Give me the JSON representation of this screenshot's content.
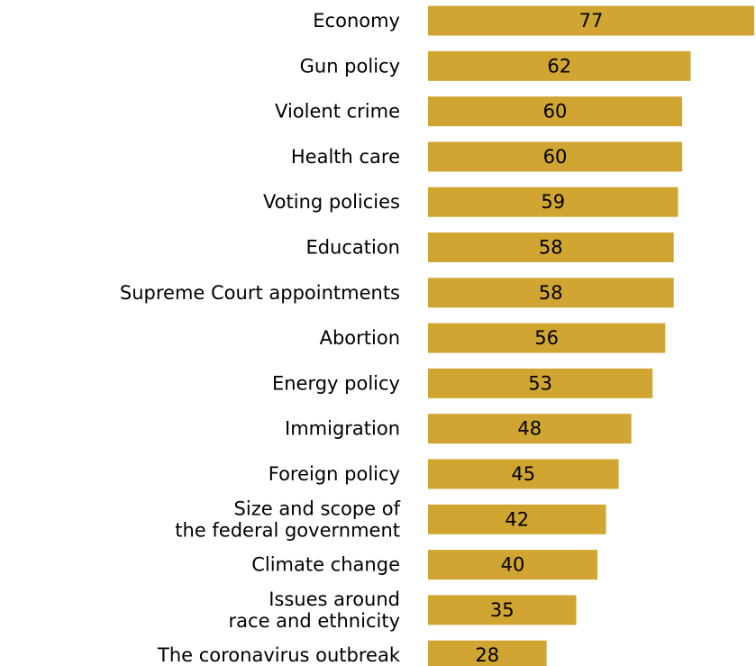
{
  "chart_data": {
    "type": "bar",
    "orientation": "horizontal",
    "categories": [
      [
        "Economy"
      ],
      [
        "Gun policy"
      ],
      [
        "Violent crime"
      ],
      [
        "Health care"
      ],
      [
        "Voting policies"
      ],
      [
        "Education"
      ],
      [
        "Supreme Court appointments"
      ],
      [
        "Abortion"
      ],
      [
        "Energy policy"
      ],
      [
        "Immigration"
      ],
      [
        "Foreign policy"
      ],
      [
        "Size and scope of",
        "the federal government"
      ],
      [
        "Climate change"
      ],
      [
        "Issues around",
        "race and ethnicity"
      ],
      [
        "The coronavirus outbreak"
      ]
    ],
    "values": [
      77,
      62,
      60,
      60,
      59,
      58,
      58,
      56,
      53,
      48,
      45,
      42,
      40,
      35,
      28
    ],
    "bar_color": "#D1A531",
    "text_color": "#000000",
    "xlim": [
      0,
      77
    ],
    "grid": false,
    "legend": "none"
  }
}
